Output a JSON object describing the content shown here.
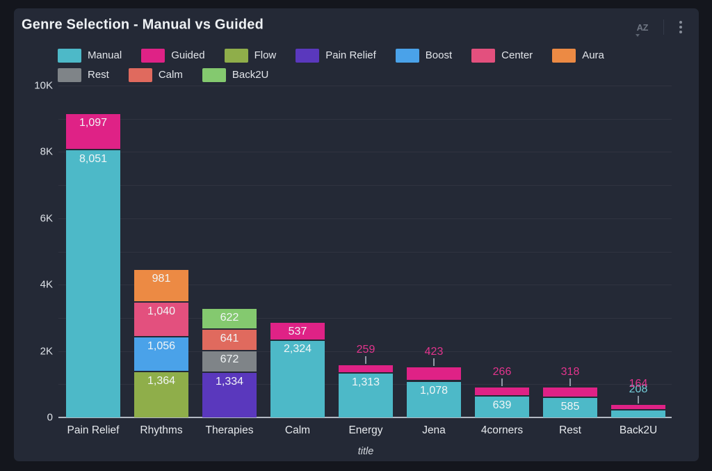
{
  "theme": {
    "background": "#14161d",
    "card": "#242936",
    "grid": "rgba(255,255,255,0.055)",
    "axis_line": "#b3b9c3",
    "text": "#e6e9ed",
    "muted_icon": "#6f7683"
  },
  "header": {
    "sort_label": "AZ",
    "icons": [
      "sort-az-icon",
      "kebab-menu-icon"
    ]
  },
  "chart_data": {
    "type": "bar",
    "stacked": true,
    "title": "Genre Selection - Manual vs Guided",
    "xlabel": "title",
    "ylabel": "",
    "ylim": [
      0,
      10000
    ],
    "grid": "horizontal, every 1K",
    "legend_position": "top",
    "yticks": [
      {
        "v": 0,
        "label": "0"
      },
      {
        "v": 2000,
        "label": "2K"
      },
      {
        "v": 4000,
        "label": "4K"
      },
      {
        "v": 6000,
        "label": "6K"
      },
      {
        "v": 8000,
        "label": "8K"
      },
      {
        "v": 10000,
        "label": "10K"
      }
    ],
    "legend": [
      "Manual",
      "Guided",
      "Flow",
      "Pain Relief",
      "Boost",
      "Center",
      "Aura",
      "Rest",
      "Calm",
      "Back2U"
    ],
    "colors": {
      "Manual": "#4db9c8",
      "Guided": "#df2286",
      "Flow": "#8fae4a",
      "Pain Relief": "#5a38bd",
      "Boost": "#4aa2e9",
      "Center": "#e3507e",
      "Aura": "#ec8a44",
      "Rest": "#7f8488",
      "Calm": "#e06a5e",
      "Back2U": "#84c96f"
    },
    "above_label_colors": {
      "Manual": "#74cbd7",
      "Guided": "#e2348d"
    },
    "categories": [
      "Pain Relief",
      "Rhythms",
      "Therapies",
      "Calm",
      "Energy",
      "Jena",
      "4corners",
      "Rest",
      "Back2U"
    ],
    "bars": [
      {
        "category": "Pain Relief",
        "segments": [
          {
            "series": "Manual",
            "value": 8051,
            "label": "8,051",
            "label_pos": "inside"
          },
          {
            "series": "Guided",
            "value": 1097,
            "label": "1,097",
            "label_pos": "inside"
          }
        ]
      },
      {
        "category": "Rhythms",
        "segments": [
          {
            "series": "Flow",
            "value": 1364,
            "label": "1,364",
            "label_pos": "inside"
          },
          {
            "series": "Boost",
            "value": 1056,
            "label": "1,056",
            "label_pos": "inside"
          },
          {
            "series": "Center",
            "value": 1040,
            "label": "1,040",
            "label_pos": "inside"
          },
          {
            "series": "Aura",
            "value": 981,
            "label": "981",
            "label_pos": "inside"
          }
        ]
      },
      {
        "category": "Therapies",
        "segments": [
          {
            "series": "Pain Relief",
            "value": 1334,
            "label": "1,334",
            "label_pos": "inside"
          },
          {
            "series": "Rest",
            "value": 672,
            "label": "672",
            "label_pos": "inside"
          },
          {
            "series": "Calm",
            "value": 641,
            "label": "641",
            "label_pos": "inside"
          },
          {
            "series": "Back2U",
            "value": 622,
            "label": "622",
            "label_pos": "inside"
          }
        ]
      },
      {
        "category": "Calm",
        "segments": [
          {
            "series": "Manual",
            "value": 2324,
            "label": "2,324",
            "label_pos": "inside"
          },
          {
            "series": "Guided",
            "value": 537,
            "label": "537",
            "label_pos": "inside"
          }
        ]
      },
      {
        "category": "Energy",
        "segments": [
          {
            "series": "Manual",
            "value": 1313,
            "label": "1,313",
            "label_pos": "inside"
          },
          {
            "series": "Guided",
            "value": 259,
            "label": "259",
            "label_pos": "above"
          }
        ]
      },
      {
        "category": "Jena",
        "segments": [
          {
            "series": "Manual",
            "value": 1078,
            "label": "1,078",
            "label_pos": "inside"
          },
          {
            "series": "Guided",
            "value": 423,
            "label": "423",
            "label_pos": "above"
          }
        ]
      },
      {
        "category": "4corners",
        "segments": [
          {
            "series": "Manual",
            "value": 639,
            "label": "639",
            "label_pos": "inside"
          },
          {
            "series": "Guided",
            "value": 266,
            "label": "266",
            "label_pos": "above"
          }
        ]
      },
      {
        "category": "Rest",
        "segments": [
          {
            "series": "Manual",
            "value": 585,
            "label": "585",
            "label_pos": "inside"
          },
          {
            "series": "Guided",
            "value": 318,
            "label": "318",
            "label_pos": "above"
          }
        ]
      },
      {
        "category": "Back2U",
        "segments": [
          {
            "series": "Manual",
            "value": 208,
            "label": "208",
            "label_pos": "above"
          },
          {
            "series": "Guided",
            "value": 164,
            "label": "164",
            "label_pos": "above"
          }
        ]
      }
    ]
  }
}
